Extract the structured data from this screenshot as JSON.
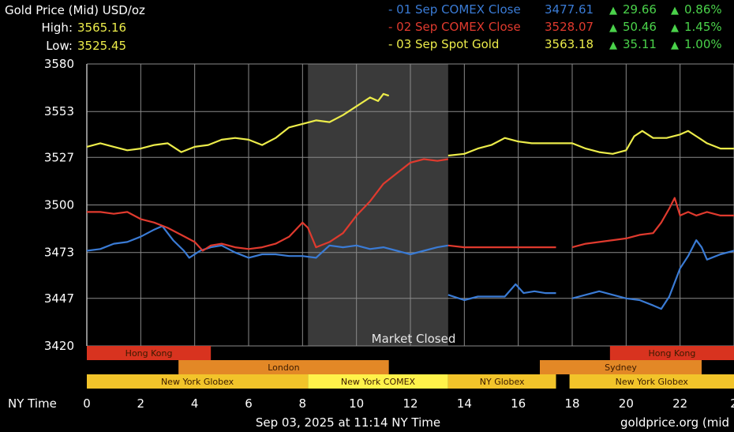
{
  "header": {
    "title": "Gold Price (Mid) USD/oz",
    "high_label": "High:",
    "high_value": "3565.16",
    "low_label": "Low:",
    "low_value": "3525.45"
  },
  "legend": [
    {
      "name": "- 01 Sep COMEX Close",
      "price": "3477.61",
      "change": "29.66",
      "pct": "0.86%",
      "color": "#3a7bd5"
    },
    {
      "name": "- 02 Sep COMEX Close",
      "price": "3528.07",
      "change": "50.46",
      "pct": "1.45%",
      "color": "#e03a2e"
    },
    {
      "name": "- 03 Sep Spot Gold",
      "price": "3563.18",
      "change": "35.11",
      "pct": "1.00%",
      "color": "#ecec4a"
    }
  ],
  "colors": {
    "up": "#4ad24a",
    "grid": "#8a8a8a",
    "label": "#ffffff",
    "closed_band": "#3a3a3a"
  },
  "market_closed_label": "Market Closed",
  "x_axis_title": "NY Time",
  "footer": {
    "timestamp": "Sep 03, 2025 at 11:14 NY Time",
    "source": "goldprice.org (mid"
  },
  "sessions": [
    {
      "label": "Hong Kong",
      "row": 0,
      "start": 0,
      "end": 4.6,
      "color": "#d8331f"
    },
    {
      "label": "Hong Kong",
      "row": 0,
      "start": 19.4,
      "end": 24,
      "color": "#d8331f"
    },
    {
      "label": "London",
      "row": 1,
      "start": 3.4,
      "end": 11.2,
      "color": "#e38826"
    },
    {
      "label": "Sydney",
      "row": 1,
      "start": 16.8,
      "end": 22.8,
      "color": "#e38826"
    },
    {
      "label": "New York Globex",
      "row": 2,
      "start": 0,
      "end": 8.2,
      "color": "#f2c42a"
    },
    {
      "label": "New York COMEX",
      "row": 2,
      "start": 8.2,
      "end": 13.4,
      "color": "#fff24a"
    },
    {
      "label": "NY Globex",
      "row": 2,
      "start": 13.4,
      "end": 17.4,
      "color": "#f2c42a"
    },
    {
      "label": "New York Globex",
      "row": 2,
      "start": 17.9,
      "end": 24,
      "color": "#f2c42a"
    }
  ],
  "chart_data": {
    "type": "line",
    "xlabel": "NY Time",
    "ylabel": "",
    "xlim": [
      0,
      24
    ],
    "ylim": [
      3420,
      3580
    ],
    "x_ticks": [
      "0",
      "2",
      "4",
      "6",
      "8",
      "10",
      "12",
      "14",
      "16",
      "18",
      "20",
      "22",
      "2"
    ],
    "y_ticks": [
      "3580",
      "3553",
      "3527",
      "3500",
      "3473",
      "3447",
      "3420"
    ],
    "y_tick_values": [
      3580,
      3553,
      3527,
      3500,
      3473,
      3447,
      3420
    ],
    "market_closed_range": [
      8.2,
      13.4
    ],
    "grid": true,
    "series": [
      {
        "name": "01 Sep COMEX Close",
        "color": "#3a7bd5",
        "segments": [
          [
            [
              0,
              3474
            ],
            [
              0.5,
              3475
            ],
            [
              1,
              3478
            ],
            [
              1.5,
              3479
            ],
            [
              2,
              3482
            ],
            [
              2.5,
              3486
            ],
            [
              2.8,
              3488
            ],
            [
              3.2,
              3480
            ],
            [
              3.6,
              3474
            ],
            [
              3.8,
              3470
            ],
            [
              4.2,
              3474
            ],
            [
              4.6,
              3476
            ],
            [
              5,
              3477
            ],
            [
              5.5,
              3473
            ],
            [
              6,
              3470
            ],
            [
              6.5,
              3472
            ],
            [
              7,
              3472
            ],
            [
              7.5,
              3471
            ],
            [
              8,
              3471
            ],
            [
              8.5,
              3470
            ],
            [
              9,
              3477
            ],
            [
              9.5,
              3476
            ],
            [
              10,
              3477
            ],
            [
              10.5,
              3475
            ],
            [
              11,
              3476
            ],
            [
              11.5,
              3474
            ],
            [
              12,
              3472
            ],
            [
              12.5,
              3474
            ],
            [
              13,
              3476
            ],
            [
              13.4,
              3477
            ]
          ],
          [
            [
              13.4,
              3449
            ],
            [
              14,
              3446
            ],
            [
              14.5,
              3448
            ],
            [
              15,
              3448
            ],
            [
              15.5,
              3448
            ],
            [
              15.9,
              3455
            ],
            [
              16.2,
              3450
            ],
            [
              16.6,
              3451
            ],
            [
              17,
              3450
            ],
            [
              17.4,
              3450
            ]
          ],
          [
            [
              18,
              3447
            ],
            [
              18.5,
              3449
            ],
            [
              19,
              3451
            ],
            [
              19.5,
              3449
            ],
            [
              20,
              3447
            ],
            [
              20.5,
              3446
            ],
            [
              21,
              3443
            ],
            [
              21.3,
              3441
            ],
            [
              21.6,
              3448
            ],
            [
              22,
              3464
            ],
            [
              22.3,
              3471
            ],
            [
              22.6,
              3480
            ],
            [
              22.8,
              3476
            ],
            [
              23,
              3469
            ],
            [
              23.5,
              3472
            ],
            [
              24,
              3474
            ]
          ]
        ]
      },
      {
        "name": "02 Sep COMEX Close",
        "color": "#e03a2e",
        "segments": [
          [
            [
              0,
              3496
            ],
            [
              0.5,
              3496
            ],
            [
              1,
              3495
            ],
            [
              1.5,
              3496
            ],
            [
              2,
              3492
            ],
            [
              2.5,
              3490
            ],
            [
              3,
              3487
            ],
            [
              3.5,
              3483
            ],
            [
              4,
              3479
            ],
            [
              4.3,
              3474
            ],
            [
              4.6,
              3477
            ],
            [
              5,
              3478
            ],
            [
              5.5,
              3476
            ],
            [
              6,
              3475
            ],
            [
              6.5,
              3476
            ],
            [
              7,
              3478
            ],
            [
              7.5,
              3482
            ],
            [
              8,
              3490
            ],
            [
              8.2,
              3487
            ],
            [
              8.5,
              3476
            ],
            [
              9,
              3479
            ],
            [
              9.5,
              3484
            ],
            [
              10,
              3494
            ],
            [
              10.5,
              3502
            ],
            [
              11,
              3512
            ],
            [
              11.5,
              3518
            ],
            [
              12,
              3524
            ],
            [
              12.5,
              3526
            ],
            [
              13,
              3525
            ],
            [
              13.4,
              3526
            ]
          ],
          [
            [
              13.4,
              3477
            ],
            [
              14,
              3476
            ],
            [
              15,
              3476
            ],
            [
              16,
              3476
            ],
            [
              17,
              3476
            ],
            [
              17.4,
              3476
            ]
          ],
          [
            [
              18,
              3476
            ],
            [
              18.5,
              3478
            ],
            [
              19,
              3479
            ],
            [
              19.5,
              3480
            ],
            [
              20,
              3481
            ],
            [
              20.5,
              3483
            ],
            [
              21,
              3484
            ],
            [
              21.3,
              3490
            ],
            [
              21.6,
              3498
            ],
            [
              21.8,
              3504
            ],
            [
              22,
              3494
            ],
            [
              22.3,
              3496
            ],
            [
              22.6,
              3494
            ],
            [
              23,
              3496
            ],
            [
              23.5,
              3494
            ],
            [
              24,
              3494
            ]
          ]
        ]
      },
      {
        "name": "03 Sep Spot Gold",
        "color": "#ecec4a",
        "segments": [
          [
            [
              0,
              3533
            ],
            [
              0.5,
              3535
            ],
            [
              1,
              3533
            ],
            [
              1.5,
              3531
            ],
            [
              2,
              3532
            ],
            [
              2.5,
              3534
            ],
            [
              3,
              3535
            ],
            [
              3.5,
              3530
            ],
            [
              4,
              3533
            ],
            [
              4.5,
              3534
            ],
            [
              5,
              3537
            ],
            [
              5.5,
              3538
            ],
            [
              6,
              3537
            ],
            [
              6.5,
              3534
            ],
            [
              7,
              3538
            ],
            [
              7.5,
              3544
            ],
            [
              8,
              3546
            ],
            [
              8.5,
              3548
            ],
            [
              9,
              3547
            ],
            [
              9.5,
              3551
            ],
            [
              10,
              3556
            ],
            [
              10.5,
              3561
            ],
            [
              10.8,
              3559
            ],
            [
              11,
              3563
            ],
            [
              11.2,
              3562
            ]
          ],
          [
            [
              13.4,
              3528
            ],
            [
              14,
              3529
            ],
            [
              14.5,
              3532
            ],
            [
              15,
              3534
            ],
            [
              15.5,
              3538
            ],
            [
              16,
              3536
            ],
            [
              16.5,
              3535
            ],
            [
              17,
              3535
            ],
            [
              17.5,
              3535
            ],
            [
              18,
              3535
            ],
            [
              18.5,
              3532
            ],
            [
              19,
              3530
            ],
            [
              19.5,
              3529
            ],
            [
              20,
              3531
            ],
            [
              20.3,
              3539
            ],
            [
              20.6,
              3542
            ],
            [
              21,
              3538
            ],
            [
              21.5,
              3538
            ],
            [
              22,
              3540
            ],
            [
              22.3,
              3542
            ],
            [
              22.6,
              3539
            ],
            [
              23,
              3535
            ],
            [
              23.5,
              3532
            ],
            [
              24,
              3532
            ]
          ]
        ]
      }
    ]
  }
}
